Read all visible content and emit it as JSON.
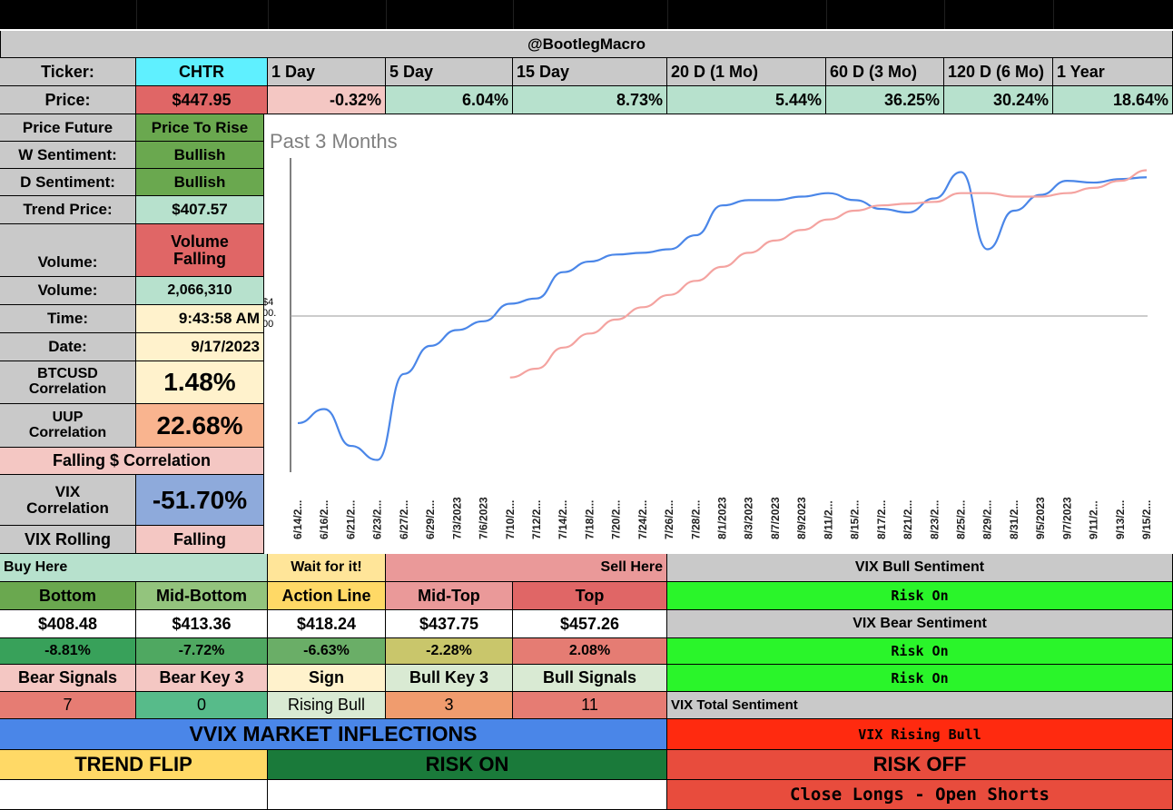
{
  "header": {
    "handle": "@BootlegMacro"
  },
  "periods": {
    "ticker_label": "Ticker:",
    "ticker": "CHTR",
    "labels": [
      "1 Day",
      "5 Day",
      "15 Day",
      "20 D (1 Mo)",
      "60 D (3 Mo)",
      "120 D (6 Mo)",
      "1 Year"
    ],
    "price_label": "Price:",
    "price": "$447.95",
    "changes": [
      "-0.32%",
      "6.04%",
      "8.73%",
      "5.44%",
      "36.25%",
      "30.24%",
      "18.64%"
    ]
  },
  "metrics": [
    {
      "label": "Price Future",
      "value": "Price To Rise"
    },
    {
      "label": "W Sentiment:",
      "value": "Bullish"
    },
    {
      "label": "D Sentiment:",
      "value": "Bullish"
    },
    {
      "label": "Trend Price:",
      "value": "$407.57"
    },
    {
      "label": "Volume:",
      "value": "Volume Falling"
    },
    {
      "label": "Volume:",
      "value": "2,066,310"
    },
    {
      "label": "Time:",
      "value": "9:43:58 AM"
    },
    {
      "label": "Date:",
      "value": "9/17/2023"
    },
    {
      "label": "BTCUSD Correlation",
      "value": "1.48%"
    },
    {
      "label": "UUP Correlation",
      "value": "22.68%"
    },
    {
      "label": "Falling $ Correlation"
    },
    {
      "label": "VIX Correlation",
      "value": "-51.70%"
    },
    {
      "label": "VIX Rolling",
      "value": "Falling"
    }
  ],
  "zones": {
    "buy_here": "Buy Here",
    "wait": "Wait for it!",
    "sell_here": "Sell Here",
    "names": [
      "Bottom",
      "Mid-Bottom",
      "Action Line",
      "Mid-Top",
      "Top"
    ],
    "prices": [
      "$408.48",
      "$413.36",
      "$418.24",
      "$437.75",
      "$457.26"
    ],
    "pcts": [
      "-8.81%",
      "-7.72%",
      "-6.63%",
      "-2.28%",
      "2.08%"
    ]
  },
  "signals": {
    "headers": [
      "Bear Signals",
      "Bear Key 3",
      "Sign",
      "Bull Key 3",
      "Bull Signals"
    ],
    "values": [
      "7",
      "0",
      "Rising Bull",
      "3",
      "11"
    ]
  },
  "vix": {
    "bull_title": "VIX Bull Sentiment",
    "bull_value": "Risk On",
    "bear_title": "VIX Bear Sentiment",
    "bear_value1": "Risk On",
    "bear_value2": "Risk On",
    "total_title": "VIX Total Sentiment",
    "total_value": "VIX Rising Bull"
  },
  "footer": {
    "inflections": "VVIX MARKET INFLECTIONS",
    "trend_flip": "TREND FLIP",
    "risk_on": "RISK ON",
    "risk_off": "RISK OFF",
    "close_longs": "Close Longs - Open Shorts"
  },
  "colors": {
    "header_gray": "#c9c9c9",
    "cyan": "#5ff0ff",
    "light_red": "#f4c7c3",
    "light_green": "#b7e1cd",
    "green": "#6aa84f",
    "dark_green": "#38761d",
    "red": "#e06666",
    "yellow_light": "#fff2cc",
    "neon_green": "#2af52a",
    "vvix_blue": "#4a86e8",
    "bright_red": "#ff2a0f",
    "yellow": "#ffd966",
    "line_blue": "#4a86e8",
    "line_pink": "#f4a3a0"
  },
  "chart_data": {
    "type": "line",
    "title": "Past 3 Months",
    "y_tick_label": "$4 00. 00",
    "x": [
      "6/14/2...",
      "6/16/2...",
      "6/21/2...",
      "6/23/2...",
      "6/27/2...",
      "6/29/2...",
      "7/3/2023",
      "7/6/2023",
      "7/10/2...",
      "7/12/2...",
      "7/14/2...",
      "7/18/2...",
      "7/20/2...",
      "7/24/2...",
      "7/26/2...",
      "7/28/2...",
      "8/1/2023",
      "8/3/2023",
      "8/7/2023",
      "8/9/2023",
      "8/11/2...",
      "8/15/2...",
      "8/17/2...",
      "8/21/2...",
      "8/23/2...",
      "8/25/2...",
      "8/29/2...",
      "8/31/2...",
      "9/5/2023",
      "9/7/2023",
      "9/11/2...",
      "9/13/2...",
      "9/15/2..."
    ],
    "series": [
      {
        "color": "#4a86e8",
        "values": [
          339,
          347,
          326,
          318,
          367,
          383,
          392,
          397,
          407,
          410,
          425,
          431,
          435,
          436,
          438,
          446,
          463,
          466,
          466,
          468,
          470,
          466,
          461,
          459,
          467,
          482,
          438,
          460,
          469,
          477,
          476,
          478,
          479
        ]
      },
      {
        "color": "#f4a3a0",
        "values": [
          null,
          null,
          null,
          null,
          null,
          null,
          null,
          null,
          365,
          370,
          382,
          390,
          398,
          405,
          412,
          420,
          428,
          436,
          443,
          449,
          455,
          460,
          463,
          464,
          465,
          470,
          470,
          468,
          468,
          470,
          473,
          477,
          483
        ]
      }
    ],
    "ylim": [
      310,
      490
    ],
    "ref_line": 400
  }
}
